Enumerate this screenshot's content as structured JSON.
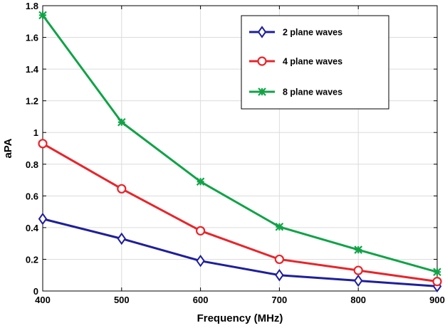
{
  "chart_data": {
    "type": "line",
    "xlabel": "Frequency (MHz)",
    "ylabel": "aPA",
    "x": [
      400,
      500,
      600,
      700,
      800,
      900
    ],
    "xlim": [
      400,
      900
    ],
    "ylim": [
      0,
      1.8
    ],
    "xticks": [
      "400",
      "500",
      "600",
      "700",
      "800",
      "900"
    ],
    "yticks": [
      "0",
      "0.2",
      "0.4",
      "0.6",
      "0.8",
      "1",
      "1.2",
      "1.4",
      "1.6",
      "1.8"
    ],
    "grid": true,
    "legend_position": "top-right",
    "series": [
      {
        "name": "2 plane waves",
        "color": "#1f1f9c",
        "marker": "diamond",
        "values": [
          0.455,
          0.33,
          0.19,
          0.1,
          0.065,
          0.03
        ]
      },
      {
        "name": "4 plane waves",
        "color": "#e8252b",
        "marker": "circle",
        "values": [
          0.93,
          0.645,
          0.38,
          0.2,
          0.13,
          0.06
        ]
      },
      {
        "name": "8 plane waves",
        "color": "#10a347",
        "marker": "asterisk",
        "values": [
          1.74,
          1.065,
          0.69,
          0.405,
          0.26,
          0.12
        ]
      }
    ]
  }
}
